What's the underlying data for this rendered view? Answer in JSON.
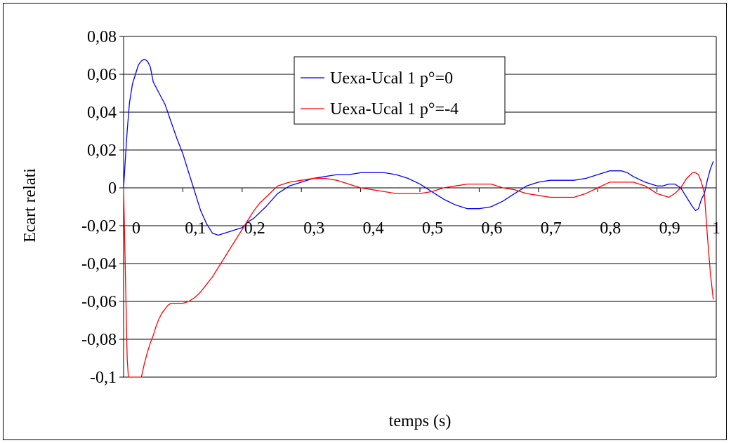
{
  "chart_data": {
    "type": "line",
    "title": "",
    "xlabel": "temps (s)",
    "ylabel": "Ecart relati",
    "xlim": [
      0,
      1
    ],
    "ylim": [
      -0.1,
      0.08
    ],
    "x_ticks": [
      0,
      0.1,
      0.2,
      0.3,
      0.4,
      0.5,
      0.6,
      0.7,
      0.8,
      0.9,
      1
    ],
    "x_tick_labels": [
      "0",
      "0,1",
      "0,2",
      "0,3",
      "0,4",
      "0,5",
      "0,6",
      "0,7",
      "0,8",
      "0,9",
      "1"
    ],
    "y_ticks": [
      0.08,
      0.06,
      0.04,
      0.02,
      0,
      -0.02,
      -0.04,
      -0.06,
      -0.08,
      -0.1
    ],
    "y_tick_labels": [
      "0,08",
      "0,06",
      "0,04",
      "0,02",
      "0",
      "-0,02",
      "-0,04",
      "-0,06",
      "-0,08",
      "-0,1"
    ],
    "grid": true,
    "legend_position": "top-center",
    "series": [
      {
        "name": "Uexa-Ucal 1 p°=0",
        "color": "#0000ff",
        "x": [
          0,
          0.003,
          0.006,
          0.01,
          0.015,
          0.02,
          0.025,
          0.03,
          0.035,
          0.04,
          0.045,
          0.05,
          0.06,
          0.07,
          0.08,
          0.09,
          0.1,
          0.11,
          0.12,
          0.13,
          0.14,
          0.15,
          0.16,
          0.17,
          0.18,
          0.19,
          0.2,
          0.21,
          0.22,
          0.24,
          0.26,
          0.28,
          0.3,
          0.32,
          0.34,
          0.36,
          0.38,
          0.4,
          0.42,
          0.44,
          0.46,
          0.48,
          0.5,
          0.52,
          0.54,
          0.56,
          0.58,
          0.6,
          0.62,
          0.64,
          0.66,
          0.68,
          0.7,
          0.72,
          0.74,
          0.76,
          0.78,
          0.8,
          0.82,
          0.84,
          0.85,
          0.86,
          0.88,
          0.9,
          0.91,
          0.92,
          0.93,
          0.94,
          0.95,
          0.96,
          0.965,
          0.97,
          0.975,
          0.98,
          0.985,
          0.99,
          0.995
        ],
        "values": [
          0,
          0.015,
          0.03,
          0.045,
          0.055,
          0.06,
          0.065,
          0.067,
          0.068,
          0.067,
          0.064,
          0.056,
          0.05,
          0.044,
          0.035,
          0.026,
          0.018,
          0.008,
          -0.002,
          -0.012,
          -0.019,
          -0.024,
          -0.025,
          -0.024,
          -0.023,
          -0.022,
          -0.021,
          -0.018,
          -0.016,
          -0.01,
          -0.003,
          0.001,
          0.003,
          0.005,
          0.006,
          0.007,
          0.007,
          0.008,
          0.008,
          0.008,
          0.007,
          0.005,
          0.002,
          -0.002,
          -0.006,
          -0.009,
          -0.011,
          -0.011,
          -0.01,
          -0.007,
          -0.003,
          0.001,
          0.003,
          0.004,
          0.004,
          0.004,
          0.005,
          0.007,
          0.009,
          0.009,
          0.008,
          0.006,
          0.003,
          0.001,
          0.001,
          0.002,
          0.002,
          0.0,
          -0.005,
          -0.01,
          -0.012,
          -0.011,
          -0.006,
          -0.003,
          0.004,
          0.01,
          0.014
        ]
      },
      {
        "name": "Uexa-Ucal 1 p°=-4",
        "color": "#ff0000",
        "x": [
          0,
          0.002,
          0.004,
          0.006,
          0.008,
          0.012,
          0.016,
          0.02,
          0.025,
          0.03,
          0.035,
          0.04,
          0.045,
          0.05,
          0.055,
          0.06,
          0.065,
          0.07,
          0.075,
          0.08,
          0.09,
          0.1,
          0.11,
          0.12,
          0.13,
          0.14,
          0.15,
          0.16,
          0.17,
          0.18,
          0.19,
          0.2,
          0.21,
          0.22,
          0.23,
          0.24,
          0.25,
          0.26,
          0.28,
          0.3,
          0.32,
          0.34,
          0.36,
          0.38,
          0.4,
          0.42,
          0.44,
          0.46,
          0.48,
          0.5,
          0.52,
          0.54,
          0.56,
          0.58,
          0.6,
          0.62,
          0.64,
          0.66,
          0.68,
          0.7,
          0.72,
          0.74,
          0.76,
          0.78,
          0.8,
          0.82,
          0.84,
          0.86,
          0.88,
          0.9,
          0.91,
          0.92,
          0.93,
          0.94,
          0.95,
          0.96,
          0.965,
          0.97,
          0.975,
          0.98,
          0.985,
          0.99,
          0.995
        ],
        "values": [
          0,
          -0.03,
          -0.06,
          -0.09,
          -0.1,
          -0.1,
          -0.1,
          -0.1,
          -0.1,
          -0.1,
          -0.093,
          -0.087,
          -0.082,
          -0.078,
          -0.073,
          -0.069,
          -0.066,
          -0.064,
          -0.062,
          -0.061,
          -0.061,
          -0.061,
          -0.06,
          -0.058,
          -0.055,
          -0.051,
          -0.047,
          -0.042,
          -0.037,
          -0.032,
          -0.027,
          -0.022,
          -0.017,
          -0.012,
          -0.008,
          -0.005,
          -0.002,
          0.001,
          0.003,
          0.004,
          0.005,
          0.005,
          0.004,
          0.002,
          0.0,
          -0.001,
          -0.002,
          -0.003,
          -0.003,
          -0.003,
          -0.002,
          0.0,
          0.001,
          0.002,
          0.002,
          0.002,
          0.0,
          -0.001,
          -0.003,
          -0.004,
          -0.005,
          -0.005,
          -0.005,
          -0.003,
          0.0,
          0.003,
          0.003,
          0.003,
          0.001,
          -0.003,
          -0.004,
          -0.005,
          -0.003,
          0.0,
          0.005,
          0.008,
          0.008,
          0.007,
          0.003,
          -0.003,
          -0.025,
          -0.045,
          -0.059
        ]
      }
    ]
  }
}
